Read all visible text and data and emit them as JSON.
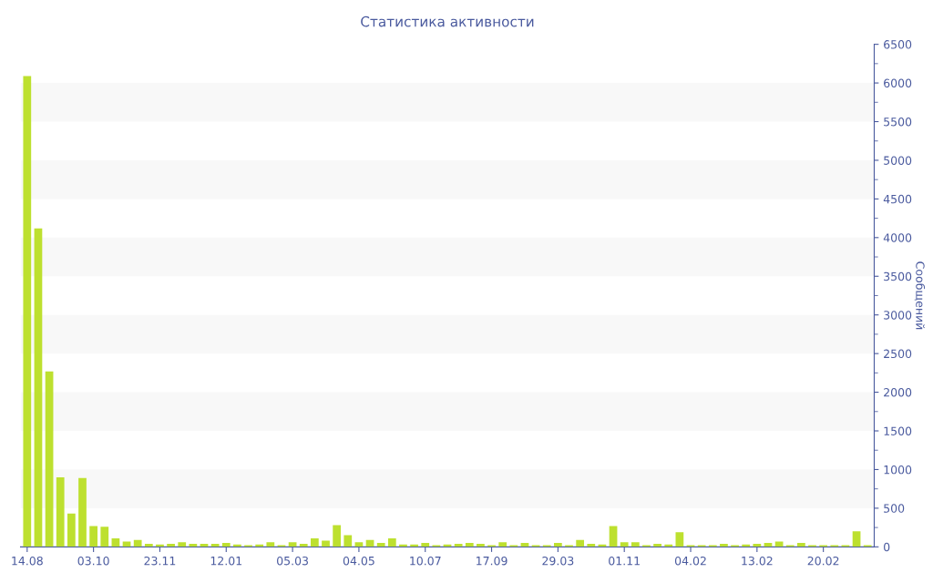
{
  "chart_data": {
    "type": "bar",
    "title": "Статистика активности",
    "y2label": "Сообщений",
    "categories": [
      "14.08",
      null,
      null,
      null,
      null,
      null,
      "03.10",
      null,
      null,
      null,
      null,
      null,
      "23.11",
      null,
      null,
      null,
      null,
      null,
      "12.01",
      null,
      null,
      null,
      null,
      null,
      "05.03",
      null,
      null,
      null,
      null,
      null,
      "04.05",
      null,
      null,
      null,
      null,
      null,
      "10.07",
      null,
      null,
      null,
      null,
      null,
      "17.09",
      null,
      null,
      null,
      null,
      null,
      "29.03",
      null,
      null,
      null,
      null,
      null,
      "01.11",
      null,
      null,
      null,
      null,
      null,
      "04.02",
      null,
      null,
      null,
      null,
      null,
      "13.02",
      null,
      null,
      null,
      null,
      null,
      "20.02",
      null,
      null,
      null,
      null
    ],
    "series": [
      {
        "color": "#bde02f",
        "axis": "y2",
        "values": [
          6090,
          4120,
          2270,
          900,
          430,
          890,
          270,
          260,
          110,
          70,
          90,
          40,
          30,
          40,
          60,
          40,
          40,
          40,
          50,
          30,
          20,
          30,
          60,
          20,
          60,
          40,
          110,
          80,
          280,
          150,
          60,
          90,
          50,
          110,
          30,
          30,
          50,
          20,
          30,
          40,
          50,
          40,
          20,
          60,
          20,
          50,
          20,
          20,
          50,
          20,
          90,
          40,
          30,
          270,
          60,
          60,
          20,
          40,
          30,
          190,
          20,
          20,
          20,
          40,
          20,
          30,
          40,
          50,
          70,
          20,
          50,
          20,
          20,
          20,
          20,
          200,
          20
        ]
      }
    ],
    "y2lim": [
      0,
      6500
    ],
    "y2ticks": [
      0,
      500,
      1000,
      1500,
      2000,
      2500,
      3000,
      3500,
      4000,
      4500,
      5000,
      5500,
      6000,
      6500
    ],
    "bands": [
      {
        "axis": "y2",
        "from": 500,
        "to": 1000,
        "color": "#f8f8f8"
      },
      {
        "axis": "y2",
        "from": 1500,
        "to": 2000,
        "color": "#f8f8f8"
      },
      {
        "axis": "y2",
        "from": 2500,
        "to": 3000,
        "color": "#f8f8f8"
      },
      {
        "axis": "y2",
        "from": 3500,
        "to": 4000,
        "color": "#f8f8f8"
      },
      {
        "axis": "y2",
        "from": 4500,
        "to": 5000,
        "color": "#f8f8f8"
      },
      {
        "axis": "y2",
        "from": 5500,
        "to": 6000,
        "color": "#f8f8f8"
      }
    ],
    "grid": false,
    "legend": false
  }
}
